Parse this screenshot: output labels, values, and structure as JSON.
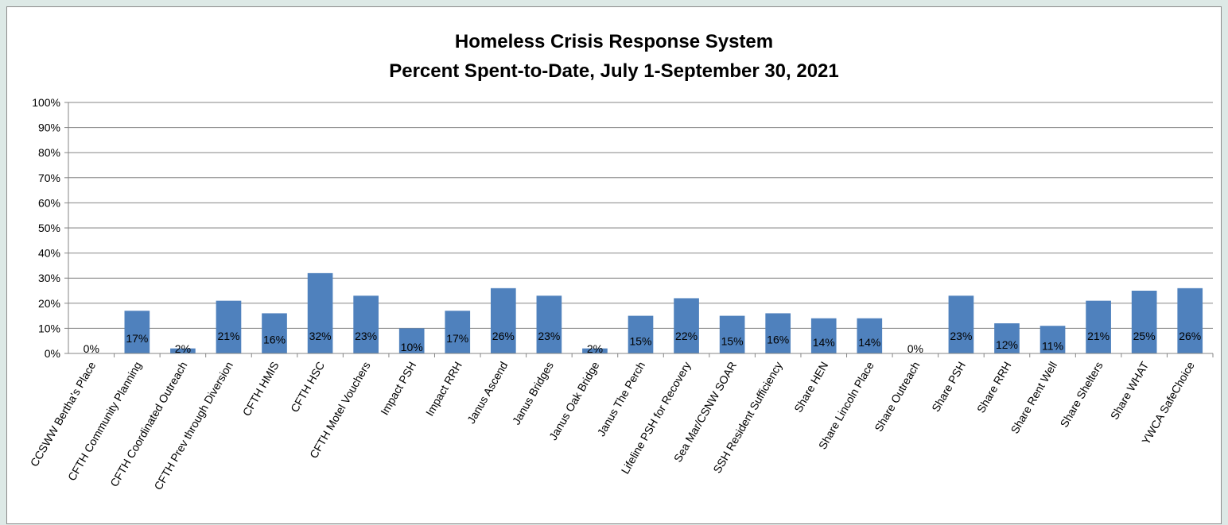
{
  "chart_data": {
    "type": "bar",
    "title": "Homeless Crisis Response System",
    "subtitle": "Percent Spent-to-Date, July 1-September 30, 2021",
    "xlabel": "",
    "ylabel": "",
    "ylim": [
      0,
      100
    ],
    "y_ticks": [
      "0%",
      "10%",
      "20%",
      "30%",
      "40%",
      "50%",
      "60%",
      "70%",
      "80%",
      "90%",
      "100%"
    ],
    "grid": true,
    "legend": "none",
    "bar_color": "#4f81bd",
    "categories": [
      "CCSWW Bertha's Place",
      "CFTH Community Planning",
      "CFTH Coordinated Outreach",
      "CFTH Prev through Diversion",
      "CFTH HMIS",
      "CFTH HSC",
      "CFTH Motel Vouchers",
      "Impact PSH",
      "Impact RRH",
      "Janus Ascend",
      "Janus Bridges",
      "Janus Oak Bridge",
      "Janus The Perch",
      "Lifeline PSH for Recovery",
      "Sea Mar/CSNW SOAR",
      "SSH Resident Sufficiency",
      "Share HEN",
      "Share Lincoln Place",
      "Share Outreach",
      "Share PSH",
      "Share RRH",
      "Share Rent Well",
      "Share Shelters",
      "Share WHAT",
      "YWCA SafeChoice"
    ],
    "values": [
      0,
      17,
      2,
      21,
      16,
      32,
      23,
      10,
      17,
      26,
      23,
      2,
      15,
      22,
      15,
      16,
      14,
      14,
      0,
      23,
      12,
      11,
      21,
      25,
      26
    ],
    "data_labels": [
      "0%",
      "17%",
      "2%",
      "21%",
      "16%",
      "32%",
      "23%",
      "10%",
      "17%",
      "26%",
      "23%",
      "2%",
      "15%",
      "22%",
      "15%",
      "16%",
      "14%",
      "14%",
      "0%",
      "23%",
      "12%",
      "11%",
      "21%",
      "25%",
      "26%"
    ]
  }
}
